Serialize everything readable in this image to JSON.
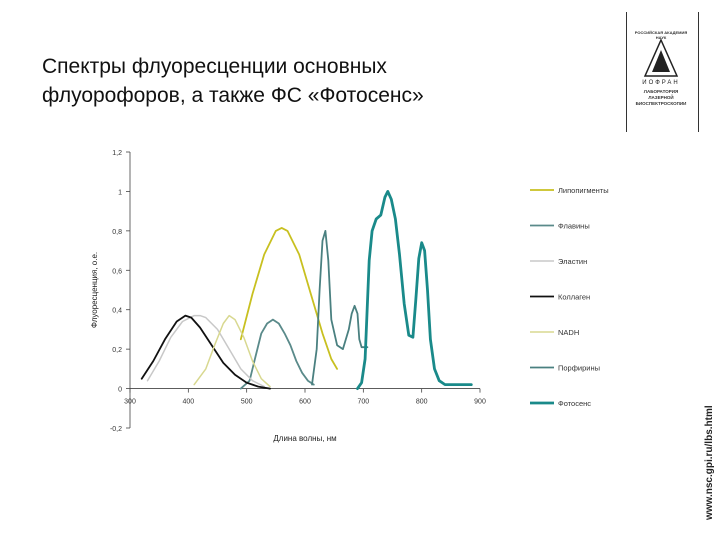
{
  "slide": {
    "title_line1": "Спектры флуоресценции основных",
    "title_line2": "флуорофоров, а также ФС «Фотосенс»",
    "url": "www.nsc.gpi.ru/lbs.html"
  },
  "logo": {
    "top_text": "РОССИЙСКАЯ АКАДЕМИЯ НАУК",
    "name": "ИОФРАН",
    "lab_line1": "ЛАБОРАТОРИЯ ЛАЗЕРНОЙ",
    "lab_line2": "БИОСПЕКТРОСКОПИИ"
  },
  "chart_data": {
    "type": "line",
    "xlabel": "Длина волны, нм",
    "ylabel": "Флуоресценция, о.е.",
    "xlim": [
      300,
      900
    ],
    "ylim": [
      -0.2,
      1.2
    ],
    "x_ticks": [
      "300",
      "400",
      "500",
      "600",
      "700",
      "800",
      "900"
    ],
    "y_ticks": [
      "-0,2",
      "0",
      "0,2",
      "0,4",
      "0,6",
      "0,8",
      "1",
      "1,2"
    ],
    "y_tick_values": [
      -0.2,
      0,
      0.2,
      0.4,
      0.6,
      0.8,
      1.0,
      1.2
    ],
    "legend_position": "right",
    "series": [
      {
        "name": "Липопигменты",
        "color": "#c8c020",
        "width": 1.8,
        "x": [
          490,
          510,
          530,
          550,
          560,
          570,
          590,
          610,
          630,
          645,
          655
        ],
        "y": [
          0.25,
          0.48,
          0.68,
          0.8,
          0.815,
          0.8,
          0.68,
          0.48,
          0.28,
          0.15,
          0.1
        ]
      },
      {
        "name": "Флавины",
        "color": "#5a8a8a",
        "width": 1.8,
        "x": [
          490,
          505,
          515,
          525,
          535,
          545,
          555,
          565,
          575,
          585,
          595,
          605,
          615
        ],
        "y": [
          0.0,
          0.04,
          0.16,
          0.28,
          0.33,
          0.35,
          0.33,
          0.28,
          0.22,
          0.14,
          0.08,
          0.04,
          0.02
        ]
      },
      {
        "name": "Эластин",
        "color": "#c8c8c8",
        "width": 1.5,
        "x": [
          330,
          350,
          370,
          390,
          410,
          420,
          430,
          450,
          470,
          490,
          510,
          530
        ],
        "y": [
          0.04,
          0.14,
          0.26,
          0.34,
          0.37,
          0.37,
          0.36,
          0.3,
          0.2,
          0.1,
          0.04,
          0.01
        ]
      },
      {
        "name": "Коллаген",
        "color": "#111111",
        "width": 1.8,
        "x": [
          320,
          340,
          360,
          380,
          395,
          405,
          420,
          440,
          460,
          480,
          500,
          520,
          540
        ],
        "y": [
          0.05,
          0.14,
          0.25,
          0.34,
          0.37,
          0.36,
          0.31,
          0.22,
          0.13,
          0.07,
          0.03,
          0.01,
          0.0
        ]
      },
      {
        "name": "NADH",
        "color": "#d8d890",
        "width": 1.5,
        "x": [
          410,
          430,
          445,
          460,
          470,
          480,
          495,
          510,
          525,
          540
        ],
        "y": [
          0.02,
          0.1,
          0.22,
          0.33,
          0.37,
          0.35,
          0.26,
          0.14,
          0.05,
          0.01
        ]
      },
      {
        "name": "Порфирины",
        "color": "#4a8080",
        "width": 1.8,
        "x": [
          612,
          620,
          625,
          630,
          635,
          640,
          645,
          655,
          665,
          675,
          680,
          685,
          690,
          693,
          697,
          700,
          707
        ],
        "y": [
          0.02,
          0.2,
          0.5,
          0.75,
          0.8,
          0.65,
          0.35,
          0.22,
          0.2,
          0.3,
          0.38,
          0.42,
          0.38,
          0.25,
          0.21,
          0.21,
          0.21
        ]
      },
      {
        "name": "Фотосенс",
        "color": "#1a8a8a",
        "width": 2.8,
        "x": [
          690,
          697,
          703,
          710,
          715,
          722,
          730,
          737,
          742,
          748,
          755,
          762,
          770,
          778,
          785,
          790,
          795,
          800,
          805,
          810,
          815,
          822,
          830,
          840,
          855,
          870,
          885
        ],
        "y": [
          0.0,
          0.03,
          0.15,
          0.65,
          0.8,
          0.86,
          0.88,
          0.97,
          1.0,
          0.96,
          0.86,
          0.68,
          0.43,
          0.27,
          0.26,
          0.45,
          0.66,
          0.74,
          0.7,
          0.5,
          0.25,
          0.1,
          0.04,
          0.02,
          0.02,
          0.02,
          0.02
        ]
      }
    ]
  }
}
